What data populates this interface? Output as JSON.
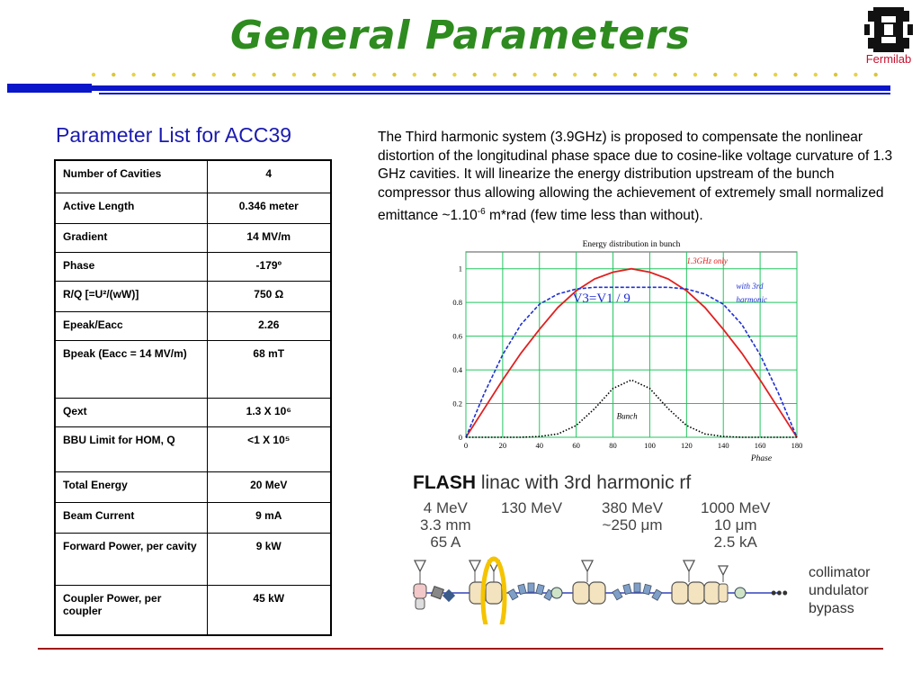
{
  "title": "General Parameters",
  "logo": {
    "text": "Fermilab",
    "icon": "fermilab-logo-icon"
  },
  "subtitle": "Parameter List for ACC39",
  "table": [
    {
      "label": "Number of Cavities",
      "value": "4"
    },
    {
      "label": "Active Length",
      "value": "0.346 meter"
    },
    {
      "label": "Gradient",
      "value": "14 MV/m"
    },
    {
      "label": "Phase",
      "value": "-179º"
    },
    {
      "label": "R/Q   [=U²/(wW)]",
      "value": "750 Ω"
    },
    {
      "label": "Epeak/Eacc",
      "value": "2.26"
    },
    {
      "label": "Bpeak (Eacc = 14 MV/m)",
      "value": "68 mT"
    },
    {
      "label": "Qext",
      "value": "1.3 X 10⁶"
    },
    {
      "label": "BBU Limit for HOM, Q",
      "value": "<1 X 10⁵"
    },
    {
      "label": "Total Energy",
      "value": "20 MeV"
    },
    {
      "label": "Beam Current",
      "value": "9 mA"
    },
    {
      "label": "Forward Power, per cavity",
      "value": "9 kW"
    },
    {
      "label": "Coupler Power, per coupler",
      "value": "45 kW"
    }
  ],
  "description": {
    "before_sup": "The Third harmonic system (3.9GHz) is proposed to compensate the nonlinear distortion of the longitudinal phase space due to cosine-like voltage curvature of 1.3 GHz cavities. It will linearize the energy distribution upstream of the bunch compressor thus allowing allowing the achievement of extremely small normalized emittance ~1.10",
    "sup": "-6",
    "after_sup": " m*rad (few time less than without)."
  },
  "chart_data": {
    "type": "line",
    "title": "Energy distribution in bunch",
    "xlabel": "Phase",
    "ylabel": "",
    "xlim": [
      0,
      180
    ],
    "ylim": [
      0,
      1.1
    ],
    "xticks": [
      "0",
      "20",
      "40",
      "60",
      "80",
      "100",
      "120",
      "140",
      "160",
      "180"
    ],
    "yticks": [
      "0",
      "0.2",
      "0.4",
      "0.6",
      "0.8",
      "1"
    ],
    "grid": true,
    "annotation": "V3=V1 / 9",
    "series": [
      {
        "name": "1.3GHz only",
        "color": "#e02020",
        "style": "solid",
        "x": [
          0,
          10,
          20,
          30,
          40,
          50,
          60,
          70,
          80,
          90,
          100,
          110,
          120,
          130,
          140,
          150,
          160,
          170,
          180
        ],
        "y": [
          0,
          0.17,
          0.34,
          0.5,
          0.64,
          0.77,
          0.87,
          0.94,
          0.98,
          1.0,
          0.98,
          0.94,
          0.87,
          0.77,
          0.64,
          0.5,
          0.34,
          0.17,
          0
        ]
      },
      {
        "name": "with 3rd harmonic",
        "color": "#2030d0",
        "style": "dashed",
        "x": [
          0,
          10,
          20,
          30,
          40,
          50,
          60,
          70,
          80,
          90,
          100,
          110,
          120,
          130,
          140,
          150,
          160,
          170,
          180
        ],
        "y": [
          0,
          0.26,
          0.49,
          0.67,
          0.79,
          0.85,
          0.88,
          0.89,
          0.89,
          0.89,
          0.89,
          0.89,
          0.88,
          0.85,
          0.79,
          0.67,
          0.49,
          0.26,
          0
        ]
      },
      {
        "name": "Bunch",
        "color": "#000000",
        "style": "dotted",
        "x": [
          0,
          10,
          20,
          30,
          40,
          50,
          60,
          70,
          80,
          90,
          100,
          110,
          120,
          130,
          140,
          150,
          160,
          170,
          180
        ],
        "y": [
          0,
          0,
          0,
          0,
          0.005,
          0.02,
          0.07,
          0.17,
          0.29,
          0.34,
          0.29,
          0.17,
          0.07,
          0.02,
          0.005,
          0,
          0,
          0,
          0
        ]
      }
    ]
  },
  "flash": {
    "title_bold": "FLASH",
    "title_rest": " linac with 3rd harmonic rf",
    "stages": [
      {
        "lines": [
          "4 MeV",
          "3.3 mm",
          "65 A"
        ]
      },
      {
        "lines": [
          "130 MeV"
        ]
      },
      {
        "lines": [
          "380 MeV",
          "~250 μm"
        ]
      },
      {
        "lines": [
          "1000 MeV",
          "10 μm",
          "2.5 kA"
        ]
      }
    ],
    "legend": [
      "collimator",
      "undulator",
      "bypass"
    ],
    "ellipsis": "•••"
  }
}
